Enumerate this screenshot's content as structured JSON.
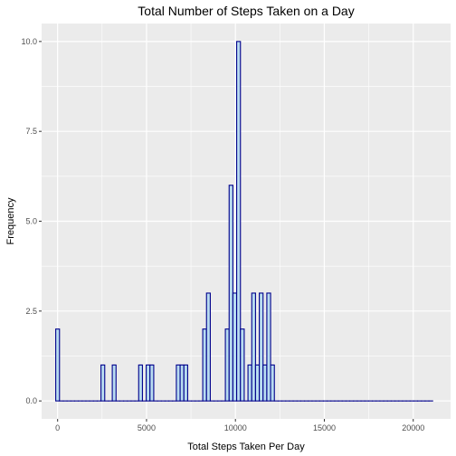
{
  "chart_data": {
    "type": "bar",
    "title": "Total Number of Steps Taken on a Day",
    "xlabel": "Total Steps Taken Per Day",
    "ylabel": "Frequency",
    "xlim": [
      -900,
      22100
    ],
    "ylim": [
      -0.5,
      10.5
    ],
    "x_ticks": [
      0,
      5000,
      10000,
      15000,
      20000
    ],
    "x_tick_labels": [
      "0",
      "5000",
      "10000",
      "15000",
      "20000"
    ],
    "y_ticks": [
      0,
      2.5,
      5,
      7.5,
      10
    ],
    "y_tick_labels": [
      "0.0",
      "2.5",
      "5.0",
      "7.5",
      "10.0"
    ],
    "bin_width": 212,
    "bin_start": -106,
    "counts": [
      2,
      0,
      0,
      0,
      0,
      0,
      0,
      0,
      0,
      0,
      0,
      0,
      1,
      0,
      0,
      1,
      0,
      0,
      0,
      0,
      0,
      0,
      1,
      0,
      1,
      1,
      0,
      0,
      0,
      0,
      0,
      0,
      1,
      1,
      1,
      0,
      0,
      0,
      0,
      2,
      3,
      0,
      0,
      0,
      0,
      2,
      6,
      3,
      10,
      2,
      0,
      1,
      3,
      1,
      3,
      1,
      3,
      1,
      0,
      0,
      0,
      0,
      0,
      0,
      0,
      0,
      0,
      0,
      0,
      0,
      0,
      0,
      0,
      0,
      0,
      0,
      0,
      0,
      0,
      0,
      0,
      0,
      0,
      0,
      0,
      0,
      0,
      0,
      0,
      0,
      0,
      0,
      0,
      0,
      0,
      0,
      0,
      0,
      0,
      0
    ],
    "grid": true,
    "colors": {
      "panel_bg": "#ebebeb",
      "grid": "#ffffff",
      "bar_fill": "#b8dcf0",
      "bar_stroke": "#00008b"
    }
  }
}
